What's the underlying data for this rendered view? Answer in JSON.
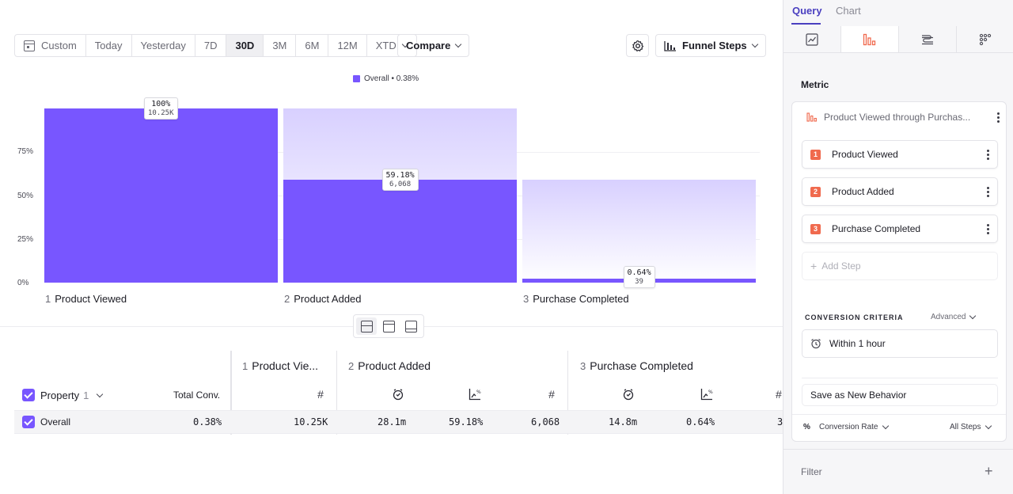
{
  "toolbar": {
    "date_options": [
      "Custom",
      "Today",
      "Yesterday",
      "7D",
      "30D",
      "3M",
      "6M",
      "12M",
      "XTD"
    ],
    "active_option": "30D",
    "compare_label": "Compare",
    "funnel_steps_label": "Funnel Steps"
  },
  "chart": {
    "legend": "Overall • 0.38%",
    "y_ticks": [
      "75%",
      "50%",
      "25%",
      "0%"
    ],
    "bar_color": "#7856ff"
  },
  "chart_data": {
    "type": "bar",
    "categories": [
      "Product Viewed",
      "Product Added",
      "Purchase Completed"
    ],
    "series": [
      {
        "name": "Overall",
        "values": [
          100,
          59.18,
          0.64
        ]
      }
    ],
    "counts": [
      "10.25K",
      "6,068",
      "39"
    ],
    "percent_labels": [
      "100%",
      "59.18%",
      "0.64%"
    ],
    "step_numbers": [
      "1",
      "2",
      "3"
    ],
    "ylim": [
      0,
      100
    ],
    "grid": true,
    "legend_position": "top-center"
  },
  "table": {
    "property_label": "Property",
    "property_count": "1",
    "total_conv_label": "Total Conv.",
    "steps": [
      {
        "num": "1",
        "name": "Product Vie..."
      },
      {
        "num": "2",
        "name": "Product Added"
      },
      {
        "num": "3",
        "name": "Purchase Completed"
      }
    ],
    "row": {
      "name": "Overall",
      "total_conv": "0.38%",
      "s1_count": "10.25K",
      "s2_time": "28.1m",
      "s2_rate": "59.18%",
      "s2_count": "6,068",
      "s3_time": "14.8m",
      "s3_rate": "0.64%",
      "s4_partial": "3"
    }
  },
  "panel": {
    "tabs": [
      "Query",
      "Chart"
    ],
    "metric_title": "Metric",
    "metric_name": "Product Viewed through Purchas...",
    "steps": [
      {
        "num": "1",
        "label": "Product Viewed"
      },
      {
        "num": "2",
        "label": "Product Added"
      },
      {
        "num": "3",
        "label": "Purchase Completed"
      }
    ],
    "add_step": "Add Step",
    "conversion_criteria": "CONVERSION CRITERIA",
    "advanced": "Advanced",
    "within": "Within 1 hour",
    "save_behavior": "Save as New Behavior",
    "percent_symbol": "%",
    "conversion_rate": "Conversion Rate",
    "all_steps": "All Steps",
    "filter": "Filter",
    "accent": "#4a3fc0",
    "badge_color": "#f06a4e"
  }
}
